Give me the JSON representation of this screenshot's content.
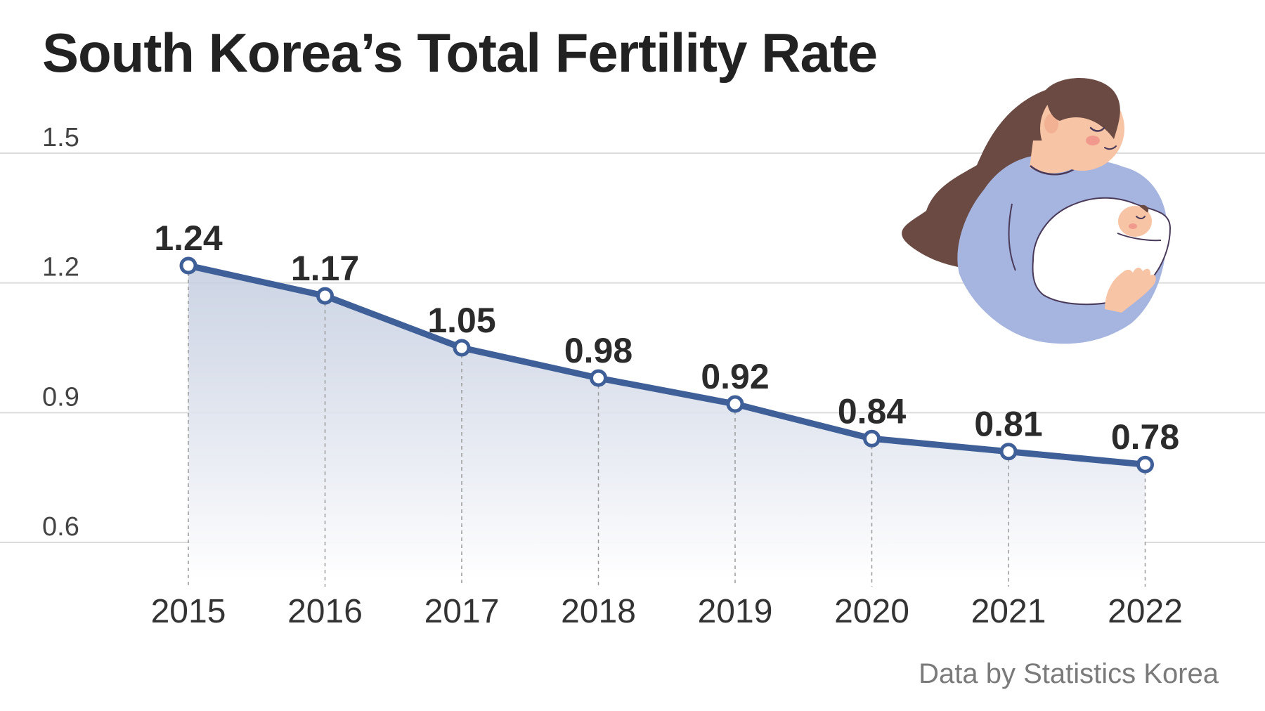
{
  "chart_data": {
    "type": "line",
    "title": "South Korea’s Total Fertility Rate",
    "xlabel": "",
    "ylabel": "",
    "x": [
      "2015",
      "2016",
      "2017",
      "2018",
      "2019",
      "2020",
      "2021",
      "2022"
    ],
    "series": [
      {
        "values": [
          1.24,
          1.17,
          1.05,
          0.98,
          0.92,
          0.84,
          0.81,
          0.78
        ],
        "data_labels": [
          "1.24",
          "1.17",
          "1.05",
          "0.98",
          "0.92",
          "0.84",
          "0.81",
          "0.78"
        ]
      }
    ],
    "ylim": [
      0.6,
      1.5
    ],
    "y_ticks": [
      0.6,
      0.9,
      1.2,
      1.5
    ],
    "y_tick_labels": [
      "0.6",
      "0.9",
      "1.2",
      "1.5"
    ],
    "grid": "horizontal",
    "area_fill": true,
    "line_color": "#3f5f98",
    "grid_color": "#dcdcdc"
  },
  "source": "Data by Statistics Korea",
  "illustration": {
    "icon": "mother-holding-baby-illustration",
    "colors": {
      "hair": "#6a4a42",
      "skin": "#f7c4a5",
      "cheek": "#ef8f86",
      "shirt": "#a6b4e0",
      "blanket": "#ffffff",
      "outline": "#4a3a5a"
    }
  }
}
